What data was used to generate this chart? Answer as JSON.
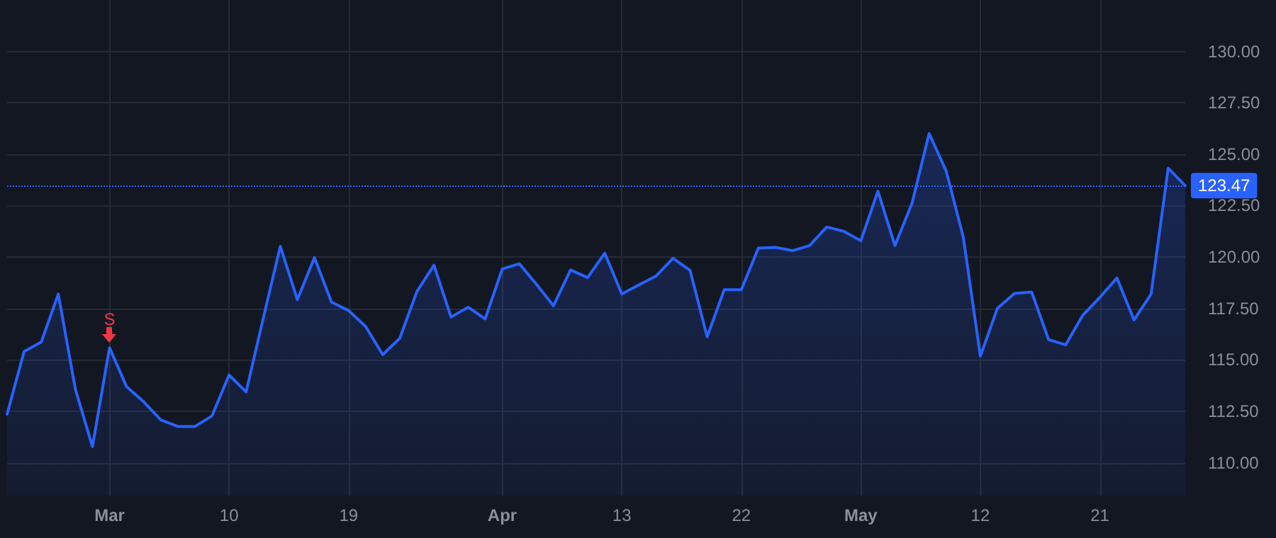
{
  "chart_data": {
    "type": "area",
    "categories": [
      null,
      null,
      null,
      null,
      null,
      null,
      "Mar",
      null,
      null,
      null,
      null,
      null,
      null,
      "10",
      null,
      null,
      null,
      null,
      null,
      null,
      "19",
      null,
      null,
      null,
      null,
      null,
      null,
      null,
      null,
      "Apr",
      null,
      null,
      null,
      null,
      null,
      null,
      "13",
      null,
      null,
      null,
      null,
      null,
      null,
      "22",
      null,
      null,
      null,
      null,
      null,
      null,
      "May",
      null,
      null,
      null,
      null,
      null,
      null,
      "12",
      null,
      null,
      null,
      null,
      null,
      null,
      "21",
      null,
      null,
      null,
      null,
      null
    ],
    "series": [
      {
        "color": "#2962ff",
        "values": [
          112.36,
          115.41,
          115.86,
          118.2,
          113.57,
          110.78,
          115.59,
          113.69,
          112.96,
          112.08,
          111.76,
          111.76,
          112.27,
          114.26,
          113.44,
          117.01,
          120.52,
          117.93,
          119.97,
          117.81,
          117.4,
          116.62,
          115.25,
          116.05,
          118.32,
          119.6,
          117.08,
          117.56,
          116.99,
          119.42,
          119.67,
          118.68,
          117.63,
          119.37,
          119.0,
          120.19,
          118.2,
          118.64,
          119.07,
          119.94,
          119.35,
          116.12,
          118.41,
          118.41,
          120.43,
          120.47,
          120.31,
          120.56,
          121.46,
          121.25,
          120.79,
          123.2,
          120.56,
          122.62,
          126.01,
          124.18,
          120.97,
          115.18,
          117.51,
          118.23,
          118.3,
          115.98,
          115.73,
          117.17,
          118.04,
          118.98,
          116.94,
          118.2,
          124.32,
          123.47
        ]
      }
    ],
    "ylim": [
      108.4,
      132.5
    ],
    "yticks": [
      {
        "value": 110,
        "label": "110.00"
      },
      {
        "value": 112.5,
        "label": "112.50"
      },
      {
        "value": 115,
        "label": "115.00"
      },
      {
        "value": 117.5,
        "label": "117.50"
      },
      {
        "value": 120,
        "label": "120.00"
      },
      {
        "value": 122.5,
        "label": "122.50"
      },
      {
        "value": 125,
        "label": "125.00"
      },
      {
        "value": 127.5,
        "label": "127.50"
      },
      {
        "value": 130,
        "label": "130.00"
      }
    ],
    "ref_lines": [
      {
        "axis": "y",
        "value": 123.47,
        "label": "123.47",
        "color": "#2962ff",
        "line_style": "dotted"
      }
    ],
    "annotations": [
      {
        "text": "S",
        "x": "Mar",
        "y": 115.59
      }
    ],
    "grid": true,
    "marker": "none",
    "line_style": "solid"
  }
}
